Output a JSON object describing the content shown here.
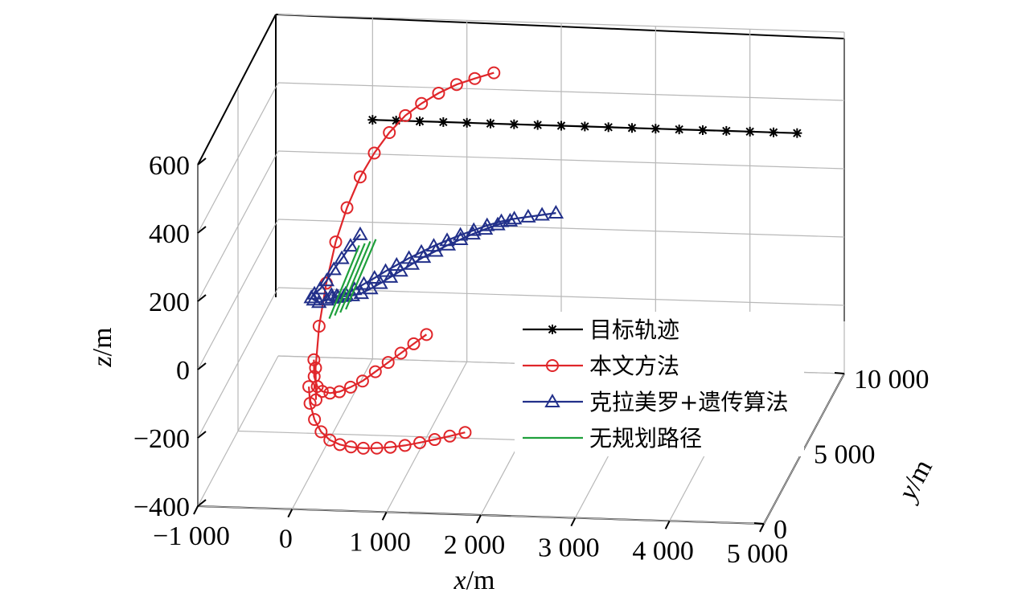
{
  "chart_data": {
    "type": "line",
    "projection": "3d",
    "xlabel": "x/m",
    "ylabel": "y/m",
    "zlabel": "z/m",
    "xlim": [
      -1000,
      5000
    ],
    "ylim": [
      0,
      10000
    ],
    "zlim": [
      -400,
      600
    ],
    "grid": true,
    "legend_position": "right",
    "x_ticks": [
      -1000,
      0,
      1000,
      2000,
      3000,
      4000,
      5000
    ],
    "x_tick_labels": [
      "−1 000",
      "0",
      "1 000",
      "2 000",
      "3 000",
      "4 000",
      "5 000"
    ],
    "y_ticks": [
      0,
      5000,
      10000
    ],
    "y_tick_labels": [
      "0",
      "5 000",
      "10 000"
    ],
    "z_ticks": [
      -400,
      -200,
      0,
      200,
      400,
      600
    ],
    "z_tick_labels": [
      "−400",
      "−200",
      "0",
      "200",
      "400",
      "600"
    ],
    "series": [
      {
        "name": "目标轨迹",
        "color": "#000000",
        "marker": "asterisk",
        "points": [
          [
            0,
            10000,
            300
          ],
          [
            250,
            10000,
            300
          ],
          [
            500,
            10000,
            300
          ],
          [
            750,
            10000,
            300
          ],
          [
            1000,
            10000,
            300
          ],
          [
            1250,
            10000,
            300
          ],
          [
            1500,
            10000,
            300
          ],
          [
            1750,
            10000,
            300
          ],
          [
            2000,
            10000,
            300
          ],
          [
            2250,
            10000,
            300
          ],
          [
            2500,
            10000,
            300
          ],
          [
            2750,
            10000,
            300
          ],
          [
            3000,
            10000,
            300
          ],
          [
            3250,
            10000,
            300
          ],
          [
            3500,
            10000,
            300
          ],
          [
            3750,
            10000,
            300
          ],
          [
            4000,
            10000,
            300
          ],
          [
            4250,
            10000,
            300
          ],
          [
            4500,
            10000,
            300
          ]
        ]
      },
      {
        "name": "本文方法",
        "color": "#e0262a",
        "marker": "circle",
        "points": [
          [
            210,
            500,
            -100
          ],
          [
            180,
            800,
            -20
          ],
          [
            175,
            1300,
            80
          ],
          [
            200,
            1900,
            180
          ],
          [
            240,
            2600,
            270
          ],
          [
            300,
            3300,
            340
          ],
          [
            380,
            4000,
            400
          ],
          [
            470,
            4700,
            440
          ],
          [
            570,
            5400,
            470
          ],
          [
            680,
            6100,
            490
          ],
          [
            800,
            6700,
            500
          ],
          [
            930,
            7300,
            505
          ],
          [
            1070,
            7900,
            505
          ],
          [
            1220,
            8400,
            502
          ],
          [
            1380,
            8900,
            498
          ],
          [
            null,
            null,
            null
          ],
          [
            60,
            2000,
            -50
          ],
          [
            80,
            1800,
            -90
          ],
          [
            130,
            1600,
            -110
          ],
          [
            200,
            1400,
            -115
          ],
          [
            290,
            1300,
            -115
          ],
          [
            390,
            1300,
            -110
          ],
          [
            500,
            1400,
            -100
          ],
          [
            610,
            1600,
            -90
          ],
          [
            720,
            1900,
            -75
          ],
          [
            830,
            2200,
            -60
          ],
          [
            940,
            2500,
            -45
          ],
          [
            1050,
            2800,
            -30
          ],
          [
            1160,
            3100,
            -15
          ],
          [
            null,
            null,
            null
          ],
          [
            100,
            900,
            -80
          ],
          [
            130,
            700,
            -120
          ],
          [
            190,
            550,
            -160
          ],
          [
            270,
            430,
            -190
          ],
          [
            370,
            350,
            -210
          ],
          [
            480,
            300,
            -220
          ],
          [
            600,
            280,
            -225
          ],
          [
            730,
            290,
            -228
          ],
          [
            870,
            320,
            -228
          ],
          [
            1010,
            360,
            -226
          ],
          [
            1160,
            420,
            -222
          ],
          [
            1310,
            500,
            -216
          ],
          [
            1460,
            600,
            -210
          ],
          [
            1610,
            720,
            -204
          ],
          [
            1760,
            860,
            -198
          ]
        ]
      },
      {
        "name": "克拉美罗+遗传算法",
        "color": "#22308a",
        "marker": "triangle",
        "points": [
          [
            -100,
            5500,
            -30
          ],
          [
            -150,
            5100,
            -20
          ],
          [
            -180,
            4800,
            0
          ],
          [
            -180,
            4500,
            20
          ],
          [
            -130,
            4300,
            40
          ],
          [
            -60,
            4200,
            60
          ],
          [
            0,
            4300,
            80
          ],
          [
            50,
            4600,
            100
          ],
          [
            100,
            5000,
            115
          ],
          [
            150,
            5500,
            130
          ],
          [
            210,
            6000,
            142
          ],
          [
            null,
            null,
            null
          ],
          [
            -60,
            5600,
            -20
          ],
          [
            0,
            5550,
            -20
          ],
          [
            80,
            5500,
            -18
          ],
          [
            170,
            5500,
            -15
          ],
          [
            260,
            5550,
            -10
          ],
          [
            350,
            5650,
            0
          ],
          [
            440,
            5800,
            10
          ],
          [
            530,
            6000,
            20
          ],
          [
            620,
            6200,
            30
          ],
          [
            720,
            6450,
            40
          ],
          [
            820,
            6700,
            50
          ],
          [
            930,
            6950,
            58
          ],
          [
            1040,
            7200,
            66
          ],
          [
            1150,
            7450,
            72
          ],
          [
            1260,
            7700,
            78
          ],
          [
            1370,
            7950,
            82
          ],
          [
            1480,
            8200,
            85
          ],
          [
            1590,
            8450,
            86
          ],
          [
            null,
            null,
            null
          ],
          [
            -30,
            5300,
            -15
          ],
          [
            40,
            5250,
            -10
          ],
          [
            120,
            5250,
            0
          ],
          [
            210,
            5300,
            12
          ],
          [
            300,
            5400,
            24
          ],
          [
            400,
            5550,
            36
          ],
          [
            500,
            5750,
            48
          ],
          [
            600,
            5950,
            58
          ],
          [
            710,
            6200,
            68
          ],
          [
            820,
            6450,
            76
          ],
          [
            930,
            6700,
            84
          ],
          [
            1050,
            6950,
            90
          ],
          [
            1170,
            7200,
            96
          ],
          [
            1290,
            7450,
            100
          ],
          [
            1410,
            7700,
            104
          ],
          [
            1540,
            7950,
            106
          ],
          [
            1660,
            8150,
            106
          ],
          [
            1790,
            8350,
            104
          ],
          [
            1920,
            8550,
            102
          ],
          [
            2050,
            8750,
            100
          ]
        ]
      },
      {
        "name": "无规划路径",
        "color": "#1fa03c",
        "marker": "none",
        "points": [
          [
            10,
            4500,
            -40
          ],
          [
            200,
            6000,
            110
          ],
          [
            null,
            null,
            null
          ],
          [
            60,
            4600,
            -35
          ],
          [
            250,
            6100,
            112
          ],
          [
            null,
            null,
            null
          ],
          [
            110,
            4700,
            -30
          ],
          [
            300,
            6200,
            114
          ],
          [
            null,
            null,
            null
          ],
          [
            160,
            4800,
            -25
          ],
          [
            350,
            6300,
            116
          ]
        ]
      }
    ]
  }
}
